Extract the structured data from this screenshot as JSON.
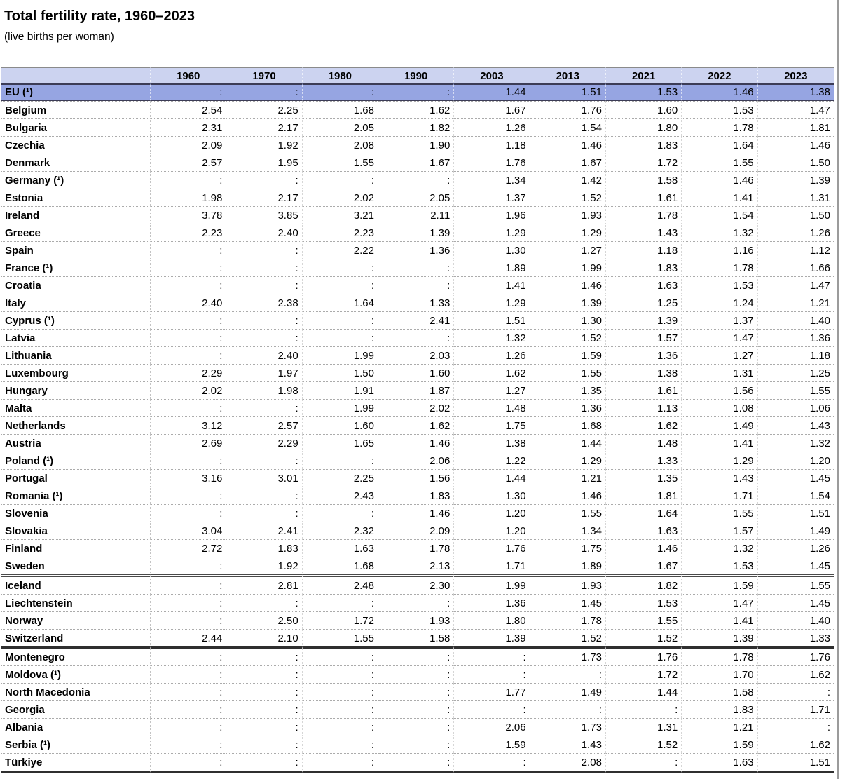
{
  "chart_data": {
    "type": "table",
    "title": "Total fertility rate, 1960–2023",
    "subtitle": "(live births per woman)",
    "unit": "live births per woman",
    "columns": [
      "1960",
      "1970",
      "1980",
      "1990",
      "2003",
      "2013",
      "2021",
      "2022",
      "2023"
    ],
    "missing_symbol": ":",
    "rows": [
      {
        "label": "EU (¹)",
        "values": [
          ":",
          ":",
          ":",
          ":",
          "1.44",
          "1.51",
          "1.53",
          "1.46",
          "1.38"
        ],
        "highlight": true
      },
      {
        "label": "Belgium",
        "values": [
          "2.54",
          "2.25",
          "1.68",
          "1.62",
          "1.67",
          "1.76",
          "1.60",
          "1.53",
          "1.47"
        ]
      },
      {
        "label": "Bulgaria",
        "values": [
          "2.31",
          "2.17",
          "2.05",
          "1.82",
          "1.26",
          "1.54",
          "1.80",
          "1.78",
          "1.81"
        ]
      },
      {
        "label": "Czechia",
        "values": [
          "2.09",
          "1.92",
          "2.08",
          "1.90",
          "1.18",
          "1.46",
          "1.83",
          "1.64",
          "1.46"
        ]
      },
      {
        "label": "Denmark",
        "values": [
          "2.57",
          "1.95",
          "1.55",
          "1.67",
          "1.76",
          "1.67",
          "1.72",
          "1.55",
          "1.50"
        ]
      },
      {
        "label": "Germany (¹)",
        "values": [
          ":",
          ":",
          ":",
          ":",
          "1.34",
          "1.42",
          "1.58",
          "1.46",
          "1.39"
        ]
      },
      {
        "label": "Estonia",
        "values": [
          "1.98",
          "2.17",
          "2.02",
          "2.05",
          "1.37",
          "1.52",
          "1.61",
          "1.41",
          "1.31"
        ]
      },
      {
        "label": "Ireland",
        "values": [
          "3.78",
          "3.85",
          "3.21",
          "2.11",
          "1.96",
          "1.93",
          "1.78",
          "1.54",
          "1.50"
        ]
      },
      {
        "label": "Greece",
        "values": [
          "2.23",
          "2.40",
          "2.23",
          "1.39",
          "1.29",
          "1.29",
          "1.43",
          "1.32",
          "1.26"
        ]
      },
      {
        "label": "Spain",
        "values": [
          ":",
          ":",
          "2.22",
          "1.36",
          "1.30",
          "1.27",
          "1.18",
          "1.16",
          "1.12"
        ]
      },
      {
        "label": "France (¹)",
        "values": [
          ":",
          ":",
          ":",
          ":",
          "1.89",
          "1.99",
          "1.83",
          "1.78",
          "1.66"
        ]
      },
      {
        "label": "Croatia",
        "values": [
          ":",
          ":",
          ":",
          ":",
          "1.41",
          "1.46",
          "1.63",
          "1.53",
          "1.47"
        ]
      },
      {
        "label": "Italy",
        "values": [
          "2.40",
          "2.38",
          "1.64",
          "1.33",
          "1.29",
          "1.39",
          "1.25",
          "1.24",
          "1.21"
        ]
      },
      {
        "label": "Cyprus (¹)",
        "values": [
          ":",
          ":",
          ":",
          "2.41",
          "1.51",
          "1.30",
          "1.39",
          "1.37",
          "1.40"
        ]
      },
      {
        "label": "Latvia",
        "values": [
          ":",
          ":",
          ":",
          ":",
          "1.32",
          "1.52",
          "1.57",
          "1.47",
          "1.36"
        ]
      },
      {
        "label": "Lithuania",
        "values": [
          ":",
          "2.40",
          "1.99",
          "2.03",
          "1.26",
          "1.59",
          "1.36",
          "1.27",
          "1.18"
        ]
      },
      {
        "label": "Luxembourg",
        "values": [
          "2.29",
          "1.97",
          "1.50",
          "1.60",
          "1.62",
          "1.55",
          "1.38",
          "1.31",
          "1.25"
        ]
      },
      {
        "label": "Hungary",
        "values": [
          "2.02",
          "1.98",
          "1.91",
          "1.87",
          "1.27",
          "1.35",
          "1.61",
          "1.56",
          "1.55"
        ]
      },
      {
        "label": "Malta",
        "values": [
          ":",
          ":",
          "1.99",
          "2.02",
          "1.48",
          "1.36",
          "1.13",
          "1.08",
          "1.06"
        ]
      },
      {
        "label": "Netherlands",
        "values": [
          "3.12",
          "2.57",
          "1.60",
          "1.62",
          "1.75",
          "1.68",
          "1.62",
          "1.49",
          "1.43"
        ]
      },
      {
        "label": "Austria",
        "values": [
          "2.69",
          "2.29",
          "1.65",
          "1.46",
          "1.38",
          "1.44",
          "1.48",
          "1.41",
          "1.32"
        ]
      },
      {
        "label": "Poland (¹)",
        "values": [
          ":",
          ":",
          ":",
          "2.06",
          "1.22",
          "1.29",
          "1.33",
          "1.29",
          "1.20"
        ]
      },
      {
        "label": "Portugal",
        "values": [
          "3.16",
          "3.01",
          "2.25",
          "1.56",
          "1.44",
          "1.21",
          "1.35",
          "1.43",
          "1.45"
        ]
      },
      {
        "label": "Romania (¹)",
        "values": [
          ":",
          ":",
          "2.43",
          "1.83",
          "1.30",
          "1.46",
          "1.81",
          "1.71",
          "1.54"
        ]
      },
      {
        "label": "Slovenia",
        "values": [
          ":",
          ":",
          ":",
          "1.46",
          "1.20",
          "1.55",
          "1.64",
          "1.55",
          "1.51"
        ]
      },
      {
        "label": "Slovakia",
        "values": [
          "3.04",
          "2.41",
          "2.32",
          "2.09",
          "1.20",
          "1.34",
          "1.63",
          "1.57",
          "1.49"
        ]
      },
      {
        "label": "Finland",
        "values": [
          "2.72",
          "1.83",
          "1.63",
          "1.78",
          "1.76",
          "1.75",
          "1.46",
          "1.32",
          "1.26"
        ]
      },
      {
        "label": "Sweden",
        "values": [
          ":",
          "1.92",
          "1.68",
          "2.13",
          "1.71",
          "1.89",
          "1.67",
          "1.53",
          "1.45"
        ]
      },
      {
        "label": "Iceland",
        "values": [
          ":",
          "2.81",
          "2.48",
          "2.30",
          "1.99",
          "1.93",
          "1.82",
          "1.59",
          "1.55"
        ],
        "sep": "double"
      },
      {
        "label": "Liechtenstein",
        "values": [
          ":",
          ":",
          ":",
          ":",
          "1.36",
          "1.45",
          "1.53",
          "1.47",
          "1.45"
        ]
      },
      {
        "label": "Norway",
        "values": [
          ":",
          "2.50",
          "1.72",
          "1.93",
          "1.80",
          "1.78",
          "1.55",
          "1.41",
          "1.40"
        ]
      },
      {
        "label": "Switzerland",
        "values": [
          "2.44",
          "2.10",
          "1.55",
          "1.58",
          "1.39",
          "1.52",
          "1.52",
          "1.39",
          "1.33"
        ]
      },
      {
        "label": "Montenegro",
        "values": [
          ":",
          ":",
          ":",
          ":",
          ":",
          "1.73",
          "1.76",
          "1.78",
          "1.76"
        ],
        "sep": "solid"
      },
      {
        "label": "Moldova (¹)",
        "values": [
          ":",
          ":",
          ":",
          ":",
          ":",
          ":",
          "1.72",
          "1.70",
          "1.62"
        ]
      },
      {
        "label": "North Macedonia",
        "values": [
          ":",
          ":",
          ":",
          ":",
          "1.77",
          "1.49",
          "1.44",
          "1.58",
          ":"
        ]
      },
      {
        "label": "Georgia",
        "values": [
          ":",
          ":",
          ":",
          ":",
          ":",
          ":",
          ":",
          "1.83",
          "1.71"
        ]
      },
      {
        "label": "Albania",
        "values": [
          ":",
          ":",
          ":",
          ":",
          "2.06",
          "1.73",
          "1.31",
          "1.21",
          ":"
        ]
      },
      {
        "label": "Serbia (¹)",
        "values": [
          ":",
          ":",
          ":",
          ":",
          "1.59",
          "1.43",
          "1.52",
          "1.59",
          "1.62"
        ]
      },
      {
        "label": "Türkiye",
        "values": [
          ":",
          ":",
          ":",
          ":",
          ":",
          "2.08",
          ":",
          "1.63",
          "1.51"
        ]
      }
    ],
    "colors": {
      "header_bg": "#ccd3f0",
      "highlight_row_bg": "#96a5e2",
      "highlight_border": "#3c3c56",
      "group_separator": "#2f2f2f"
    },
    "layout": {
      "corner_cell": "",
      "value_alignment": "right",
      "label_column_bold": true
    }
  }
}
